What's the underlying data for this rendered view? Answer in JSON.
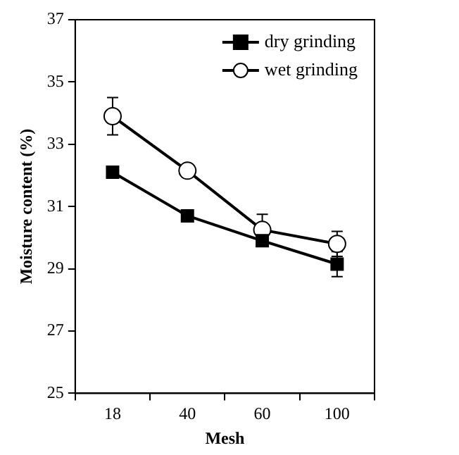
{
  "chart_data": {
    "type": "line",
    "xlabel": "Mesh",
    "ylabel": "Moisture content (%)",
    "categories": [
      "18",
      "40",
      "60",
      "100"
    ],
    "ylim": [
      25,
      37
    ],
    "yticks": [
      25,
      27,
      29,
      31,
      33,
      35,
      37
    ],
    "series": [
      {
        "name": "dry grinding",
        "color": "#000000",
        "marker": "square",
        "values": [
          32.1,
          30.7,
          29.9,
          29.15
        ],
        "errors": [
          null,
          null,
          null,
          0.4
        ]
      },
      {
        "name": "wet grinding",
        "color": "#000000",
        "marker": "circle",
        "values": [
          33.9,
          32.15,
          30.25,
          29.8
        ],
        "errors": [
          0.6,
          0.2,
          0.5,
          0.4
        ]
      }
    ],
    "legend": "top right",
    "grid": false,
    "line_style": "solid"
  }
}
